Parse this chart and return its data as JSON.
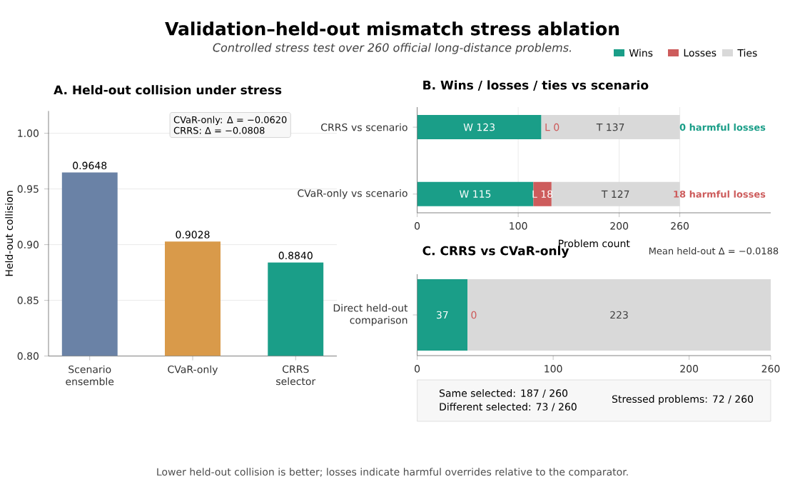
{
  "chart_data": [
    {
      "type": "bar",
      "title": "A. Held-out collision under stress",
      "ylabel": "Held-out collision",
      "categories": [
        "Scenario ensemble",
        "CVaR-only",
        "CRRS selector"
      ],
      "values": [
        0.9648,
        0.9028,
        0.884
      ],
      "value_labels": [
        "0.9648",
        "0.9028",
        "0.8840"
      ],
      "colors": [
        "#6a82a6",
        "#d99a4a",
        "#1a9e88"
      ],
      "ylim": [
        0.8,
        1.02
      ],
      "yticks": [
        {
          "value": 0.8,
          "label": "0.80"
        },
        {
          "value": 0.85,
          "label": "0.85"
        },
        {
          "value": 0.9,
          "label": "0.90"
        },
        {
          "value": 0.95,
          "label": "0.95"
        },
        {
          "value": 1.0,
          "label": "1.00"
        }
      ],
      "grid": "y",
      "annotations": [
        "CVaR-only: Δ = −0.0620",
        "CRRS: Δ = −0.0808"
      ]
    },
    {
      "type": "bar",
      "orientation": "horizontal",
      "stacked": true,
      "title": "B. Wins / losses / ties vs scenario",
      "xlabel": "Problem count",
      "categories": [
        "CRRS vs scenario",
        "CVaR-only vs scenario"
      ],
      "series": [
        {
          "name": "Wins",
          "color": "#1a9e88",
          "values": [
            123,
            115
          ],
          "value_labels": [
            "W 123",
            "W 115"
          ]
        },
        {
          "name": "Losses",
          "color": "#cd5c5c",
          "values": [
            0,
            18
          ],
          "value_labels": [
            null,
            "L 18"
          ]
        },
        {
          "name": "Ties",
          "color": "#d9d9d9",
          "values": [
            137,
            127
          ],
          "value_labels": [
            "T 137",
            "T 127"
          ]
        }
      ],
      "xlim": [
        0,
        350
      ],
      "xticks": [
        0,
        100,
        200,
        260
      ],
      "grid": "x",
      "legend": "top right",
      "annotations": [
        "0 harmful losses",
        "18 harmful losses",
        "Mean held-out Δ = −0.0188",
        "L 0"
      ]
    },
    {
      "type": "bar",
      "orientation": "horizontal",
      "stacked": true,
      "title": "C. CRRS vs CVaR-only",
      "categories": [
        "Direct held-out comparison"
      ],
      "series": [
        {
          "color": "#1a9e88",
          "values": [
            37
          ],
          "value_labels": [
            "37"
          ]
        },
        {
          "color": "#cd5c5c",
          "values": [
            0
          ],
          "value_labels": [
            null
          ]
        },
        {
          "color": "#d9d9d9",
          "values": [
            223
          ],
          "value_labels": [
            "223"
          ]
        }
      ],
      "xlim": [
        0,
        260
      ],
      "xticks": [
        0,
        100,
        200,
        260
      ],
      "annotations": [
        "Same selected: 187 / 260",
        "Different selected: 73 / 260",
        "Stressed problems: 72 / 260",
        "0"
      ]
    },
    {
      "type": "other",
      "title": "Validation–held-out mismatch stress ablation",
      "subtitle": "Controlled stress test over 260 official long-distance problems.",
      "annotations": [
        "Lower held-out collision is better; losses indicate harmful overrides relative to the comparator."
      ]
    }
  ]
}
